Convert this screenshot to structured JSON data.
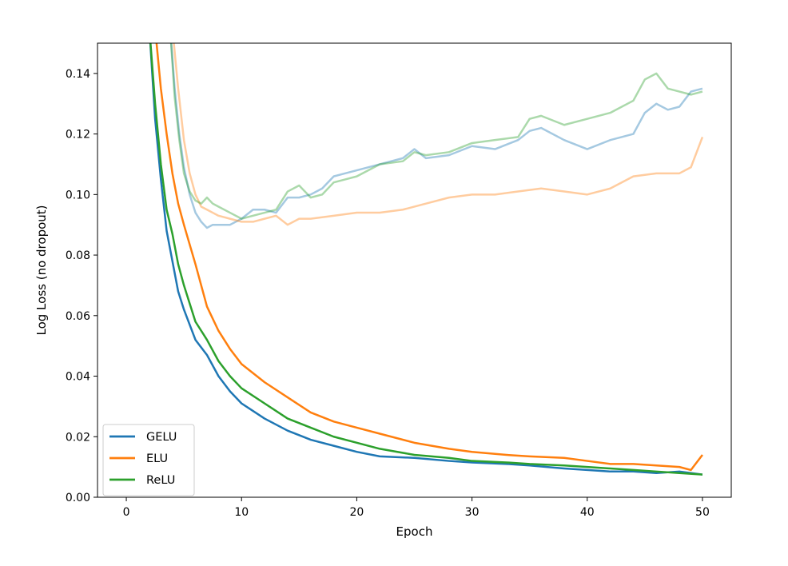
{
  "chart_data": {
    "type": "line",
    "xlabel": "Epoch",
    "ylabel": "Log Loss (no dropout)",
    "xlim": [
      -2.5,
      52.5
    ],
    "ylim": [
      0,
      0.15
    ],
    "xticks": [
      0,
      10,
      20,
      30,
      40,
      50
    ],
    "xtick_labels": [
      "0",
      "10",
      "20",
      "30",
      "40",
      "50"
    ],
    "yticks": [
      0,
      0.02,
      0.04,
      0.06,
      0.08,
      0.1,
      0.12,
      0.14
    ],
    "ytick_labels": [
      "0.00",
      "0.02",
      "0.04",
      "0.06",
      "0.08",
      "0.10",
      "0.12",
      "0.14"
    ],
    "grid": false,
    "legend_position": "lower-left",
    "series": [
      {
        "name": "GELU",
        "role": "train",
        "color": "#1f77b4",
        "opacity": 1,
        "x": [
          2,
          2.5,
          3,
          3.5,
          4,
          4.5,
          5,
          6,
          7,
          8,
          9,
          10,
          12,
          14,
          16,
          18,
          20,
          22,
          25,
          28,
          30,
          33,
          35,
          38,
          40,
          42,
          44,
          46,
          48,
          50
        ],
        "y": [
          0.155,
          0.125,
          0.105,
          0.088,
          0.078,
          0.068,
          0.062,
          0.052,
          0.047,
          0.04,
          0.035,
          0.031,
          0.026,
          0.022,
          0.019,
          0.017,
          0.015,
          0.0135,
          0.013,
          0.012,
          0.0115,
          0.011,
          0.0105,
          0.0095,
          0.009,
          0.0085,
          0.0085,
          0.008,
          0.0085,
          0.0075
        ]
      },
      {
        "name": "ELU",
        "role": "train",
        "color": "#ff7f0e",
        "opacity": 1,
        "x": [
          2.5,
          3,
          3.5,
          4,
          4.5,
          5,
          6,
          7,
          8,
          9,
          10,
          12,
          14,
          16,
          18,
          20,
          22,
          25,
          28,
          30,
          33,
          35,
          38,
          40,
          42,
          44,
          46,
          48,
          49,
          50
        ],
        "y": [
          0.155,
          0.135,
          0.12,
          0.107,
          0.097,
          0.09,
          0.077,
          0.063,
          0.055,
          0.049,
          0.044,
          0.038,
          0.033,
          0.028,
          0.025,
          0.023,
          0.021,
          0.018,
          0.016,
          0.015,
          0.014,
          0.0135,
          0.013,
          0.012,
          0.011,
          0.011,
          0.0105,
          0.01,
          0.009,
          0.014
        ]
      },
      {
        "name": "ReLU",
        "role": "train",
        "color": "#2ca02c",
        "opacity": 1,
        "x": [
          2,
          2.5,
          3,
          3.5,
          4,
          4.5,
          5,
          6,
          7,
          8,
          9,
          10,
          12,
          14,
          16,
          18,
          20,
          22,
          25,
          28,
          30,
          33,
          35,
          38,
          40,
          42,
          44,
          46,
          48,
          50
        ],
        "y": [
          0.155,
          0.13,
          0.11,
          0.095,
          0.087,
          0.077,
          0.07,
          0.058,
          0.052,
          0.045,
          0.04,
          0.036,
          0.031,
          0.026,
          0.023,
          0.02,
          0.018,
          0.016,
          0.014,
          0.013,
          0.012,
          0.0115,
          0.011,
          0.0105,
          0.01,
          0.0095,
          0.009,
          0.0085,
          0.008,
          0.0075
        ]
      },
      {
        "name": "GELU",
        "role": "validation",
        "color": "#1f77b4",
        "opacity": 0.4,
        "x": [
          3.8,
          4.2,
          4.6,
          5,
          5.5,
          6,
          6.5,
          7,
          7.5,
          8,
          9,
          10,
          11,
          12,
          13,
          14,
          15,
          16,
          17,
          18,
          19,
          20,
          22,
          24,
          25,
          26,
          28,
          30,
          32,
          34,
          35,
          36,
          38,
          40,
          42,
          44,
          45,
          46,
          47,
          48,
          49,
          50
        ],
        "y": [
          0.155,
          0.135,
          0.12,
          0.109,
          0.1,
          0.094,
          0.091,
          0.089,
          0.09,
          0.09,
          0.09,
          0.092,
          0.095,
          0.095,
          0.094,
          0.099,
          0.099,
          0.1,
          0.102,
          0.106,
          0.107,
          0.108,
          0.11,
          0.112,
          0.115,
          0.112,
          0.113,
          0.116,
          0.115,
          0.118,
          0.121,
          0.122,
          0.118,
          0.115,
          0.118,
          0.12,
          0.127,
          0.13,
          0.128,
          0.129,
          0.134,
          0.135
        ]
      },
      {
        "name": "ELU",
        "role": "validation",
        "color": "#ff7f0e",
        "opacity": 0.4,
        "x": [
          4,
          4.5,
          5,
          5.5,
          6,
          6.5,
          7,
          7.5,
          8,
          9,
          10,
          11,
          12,
          13,
          14,
          15,
          16,
          18,
          20,
          22,
          24,
          26,
          28,
          30,
          32,
          34,
          36,
          38,
          40,
          42,
          44,
          46,
          48,
          49,
          50
        ],
        "y": [
          0.155,
          0.135,
          0.118,
          0.107,
          0.1,
          0.096,
          0.095,
          0.094,
          0.093,
          0.092,
          0.091,
          0.091,
          0.092,
          0.093,
          0.09,
          0.092,
          0.092,
          0.093,
          0.094,
          0.094,
          0.095,
          0.097,
          0.099,
          0.1,
          0.1,
          0.101,
          0.102,
          0.101,
          0.1,
          0.102,
          0.106,
          0.107,
          0.107,
          0.109,
          0.119
        ]
      },
      {
        "name": "ReLU",
        "role": "validation",
        "color": "#2ca02c",
        "opacity": 0.4,
        "x": [
          3.8,
          4.2,
          4.6,
          5,
          5.5,
          6,
          6.5,
          7,
          7.5,
          8,
          9,
          10,
          11,
          12,
          13,
          14,
          15,
          16,
          17,
          18,
          19,
          20,
          22,
          24,
          25,
          26,
          28,
          30,
          32,
          34,
          35,
          36,
          38,
          40,
          42,
          44,
          45,
          46,
          47,
          48,
          49,
          50
        ],
        "y": [
          0.155,
          0.132,
          0.118,
          0.107,
          0.101,
          0.098,
          0.097,
          0.099,
          0.097,
          0.096,
          0.094,
          0.092,
          0.093,
          0.094,
          0.095,
          0.101,
          0.103,
          0.099,
          0.1,
          0.104,
          0.105,
          0.106,
          0.11,
          0.111,
          0.114,
          0.113,
          0.114,
          0.117,
          0.118,
          0.119,
          0.125,
          0.126,
          0.123,
          0.125,
          0.127,
          0.131,
          0.138,
          0.14,
          0.135,
          0.134,
          0.133,
          0.134
        ]
      }
    ]
  }
}
